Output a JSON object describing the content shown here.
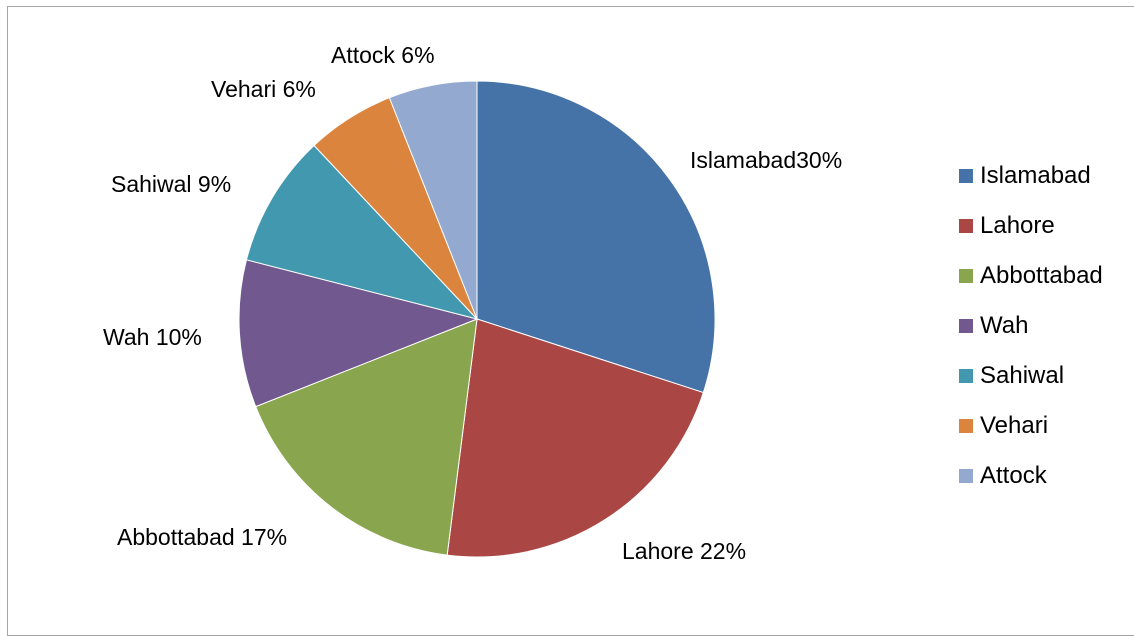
{
  "chart_data": {
    "type": "pie",
    "title": "",
    "start_angle_deg": 0,
    "direction": "clockwise",
    "legend_position": "right",
    "slices": [
      {
        "name": "Islamabad",
        "value": 30,
        "label": "Islamabad30%",
        "color": "#4572A7"
      },
      {
        "name": "Lahore",
        "value": 22,
        "label": "Lahore 22%",
        "color": "#AA4643"
      },
      {
        "name": "Abbottabad",
        "value": 17,
        "label": "Abbottabad 17%",
        "color": "#89A54E"
      },
      {
        "name": "Wah",
        "value": 10,
        "label": "Wah  10%",
        "color": "#71588F"
      },
      {
        "name": "Sahiwal",
        "value": 9,
        "label": "Sahiwal  9%",
        "color": "#4198AF"
      },
      {
        "name": "Vehari",
        "value": 6,
        "label": "Vehari 6%",
        "color": "#DB843D"
      },
      {
        "name": "Attock",
        "value": 6,
        "label": "Attock  6%",
        "color": "#93A9CF"
      }
    ]
  }
}
